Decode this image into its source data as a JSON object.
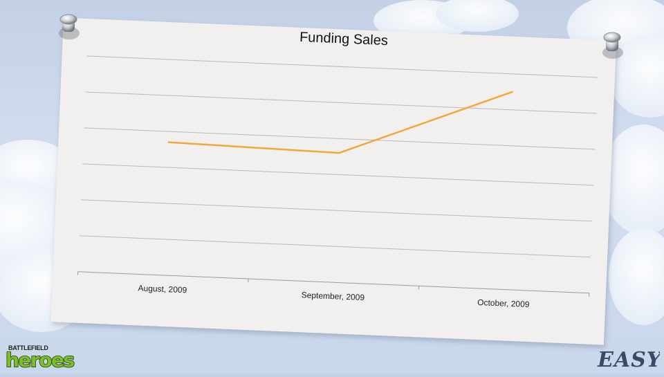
{
  "slide": {
    "brand_top": "BATTLEFIELD",
    "brand_main": "heroes",
    "corner_logo": "EASY"
  },
  "colors": {
    "line": "#f3a73a",
    "gridline": "#b8b8b8",
    "card": "#f1f0ee",
    "pin": "#9aa0a8"
  },
  "icons": {
    "pin_left": "push-pin-icon",
    "pin_right": "push-pin-icon"
  },
  "chart_data": {
    "type": "line",
    "title": "Funding Sales",
    "categories": [
      "August, 2009",
      "September, 2009",
      "October, 2009"
    ],
    "series": [
      {
        "values": [
          3.7,
          3.6,
          5.5
        ]
      }
    ],
    "ylim": [
      0,
      6
    ],
    "grid": true,
    "legend": "none"
  }
}
